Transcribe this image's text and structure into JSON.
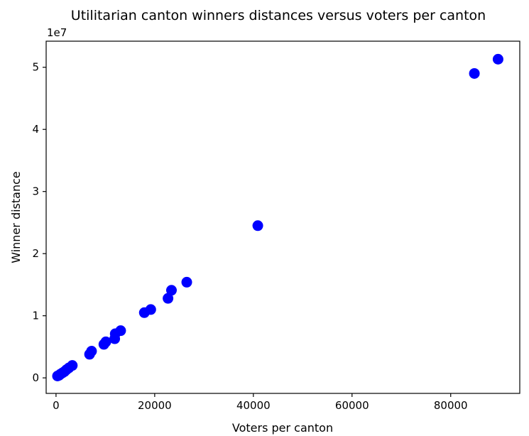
{
  "chart_data": {
    "type": "scatter",
    "title": "Utilitarian canton winners distances versus voters per canton",
    "xlabel": "Voters per canton",
    "ylabel": "Winner distance",
    "y_offset_label": "1e7",
    "xlim": [
      -2000,
      94000
    ],
    "ylim": [
      -0.25,
      5.42
    ],
    "x_ticks": [
      0,
      20000,
      40000,
      60000,
      80000
    ],
    "x_tick_labels": [
      "0",
      "20000",
      "40000",
      "60000",
      "80000"
    ],
    "y_ticks": [
      0,
      1,
      2,
      3,
      4,
      5
    ],
    "y_tick_labels": [
      "0",
      "1",
      "2",
      "3",
      "4",
      "5"
    ],
    "y_unit_scale": 10000000,
    "grid": false,
    "marker_color": "#0000ff",
    "points": [
      {
        "x": 300,
        "y": 0.03
      },
      {
        "x": 600,
        "y": 0.04
      },
      {
        "x": 900,
        "y": 0.06
      },
      {
        "x": 1300,
        "y": 0.08
      },
      {
        "x": 1700,
        "y": 0.1
      },
      {
        "x": 2100,
        "y": 0.13
      },
      {
        "x": 2600,
        "y": 0.16
      },
      {
        "x": 3300,
        "y": 0.2
      },
      {
        "x": 6800,
        "y": 0.38
      },
      {
        "x": 7200,
        "y": 0.43
      },
      {
        "x": 9700,
        "y": 0.54
      },
      {
        "x": 10100,
        "y": 0.58
      },
      {
        "x": 11900,
        "y": 0.63
      },
      {
        "x": 12000,
        "y": 0.71
      },
      {
        "x": 13100,
        "y": 0.76
      },
      {
        "x": 17900,
        "y": 1.05
      },
      {
        "x": 19200,
        "y": 1.1
      },
      {
        "x": 22700,
        "y": 1.28
      },
      {
        "x": 23400,
        "y": 1.41
      },
      {
        "x": 26500,
        "y": 1.54
      },
      {
        "x": 40900,
        "y": 2.45
      },
      {
        "x": 84800,
        "y": 4.9
      },
      {
        "x": 89600,
        "y": 5.13
      }
    ]
  }
}
